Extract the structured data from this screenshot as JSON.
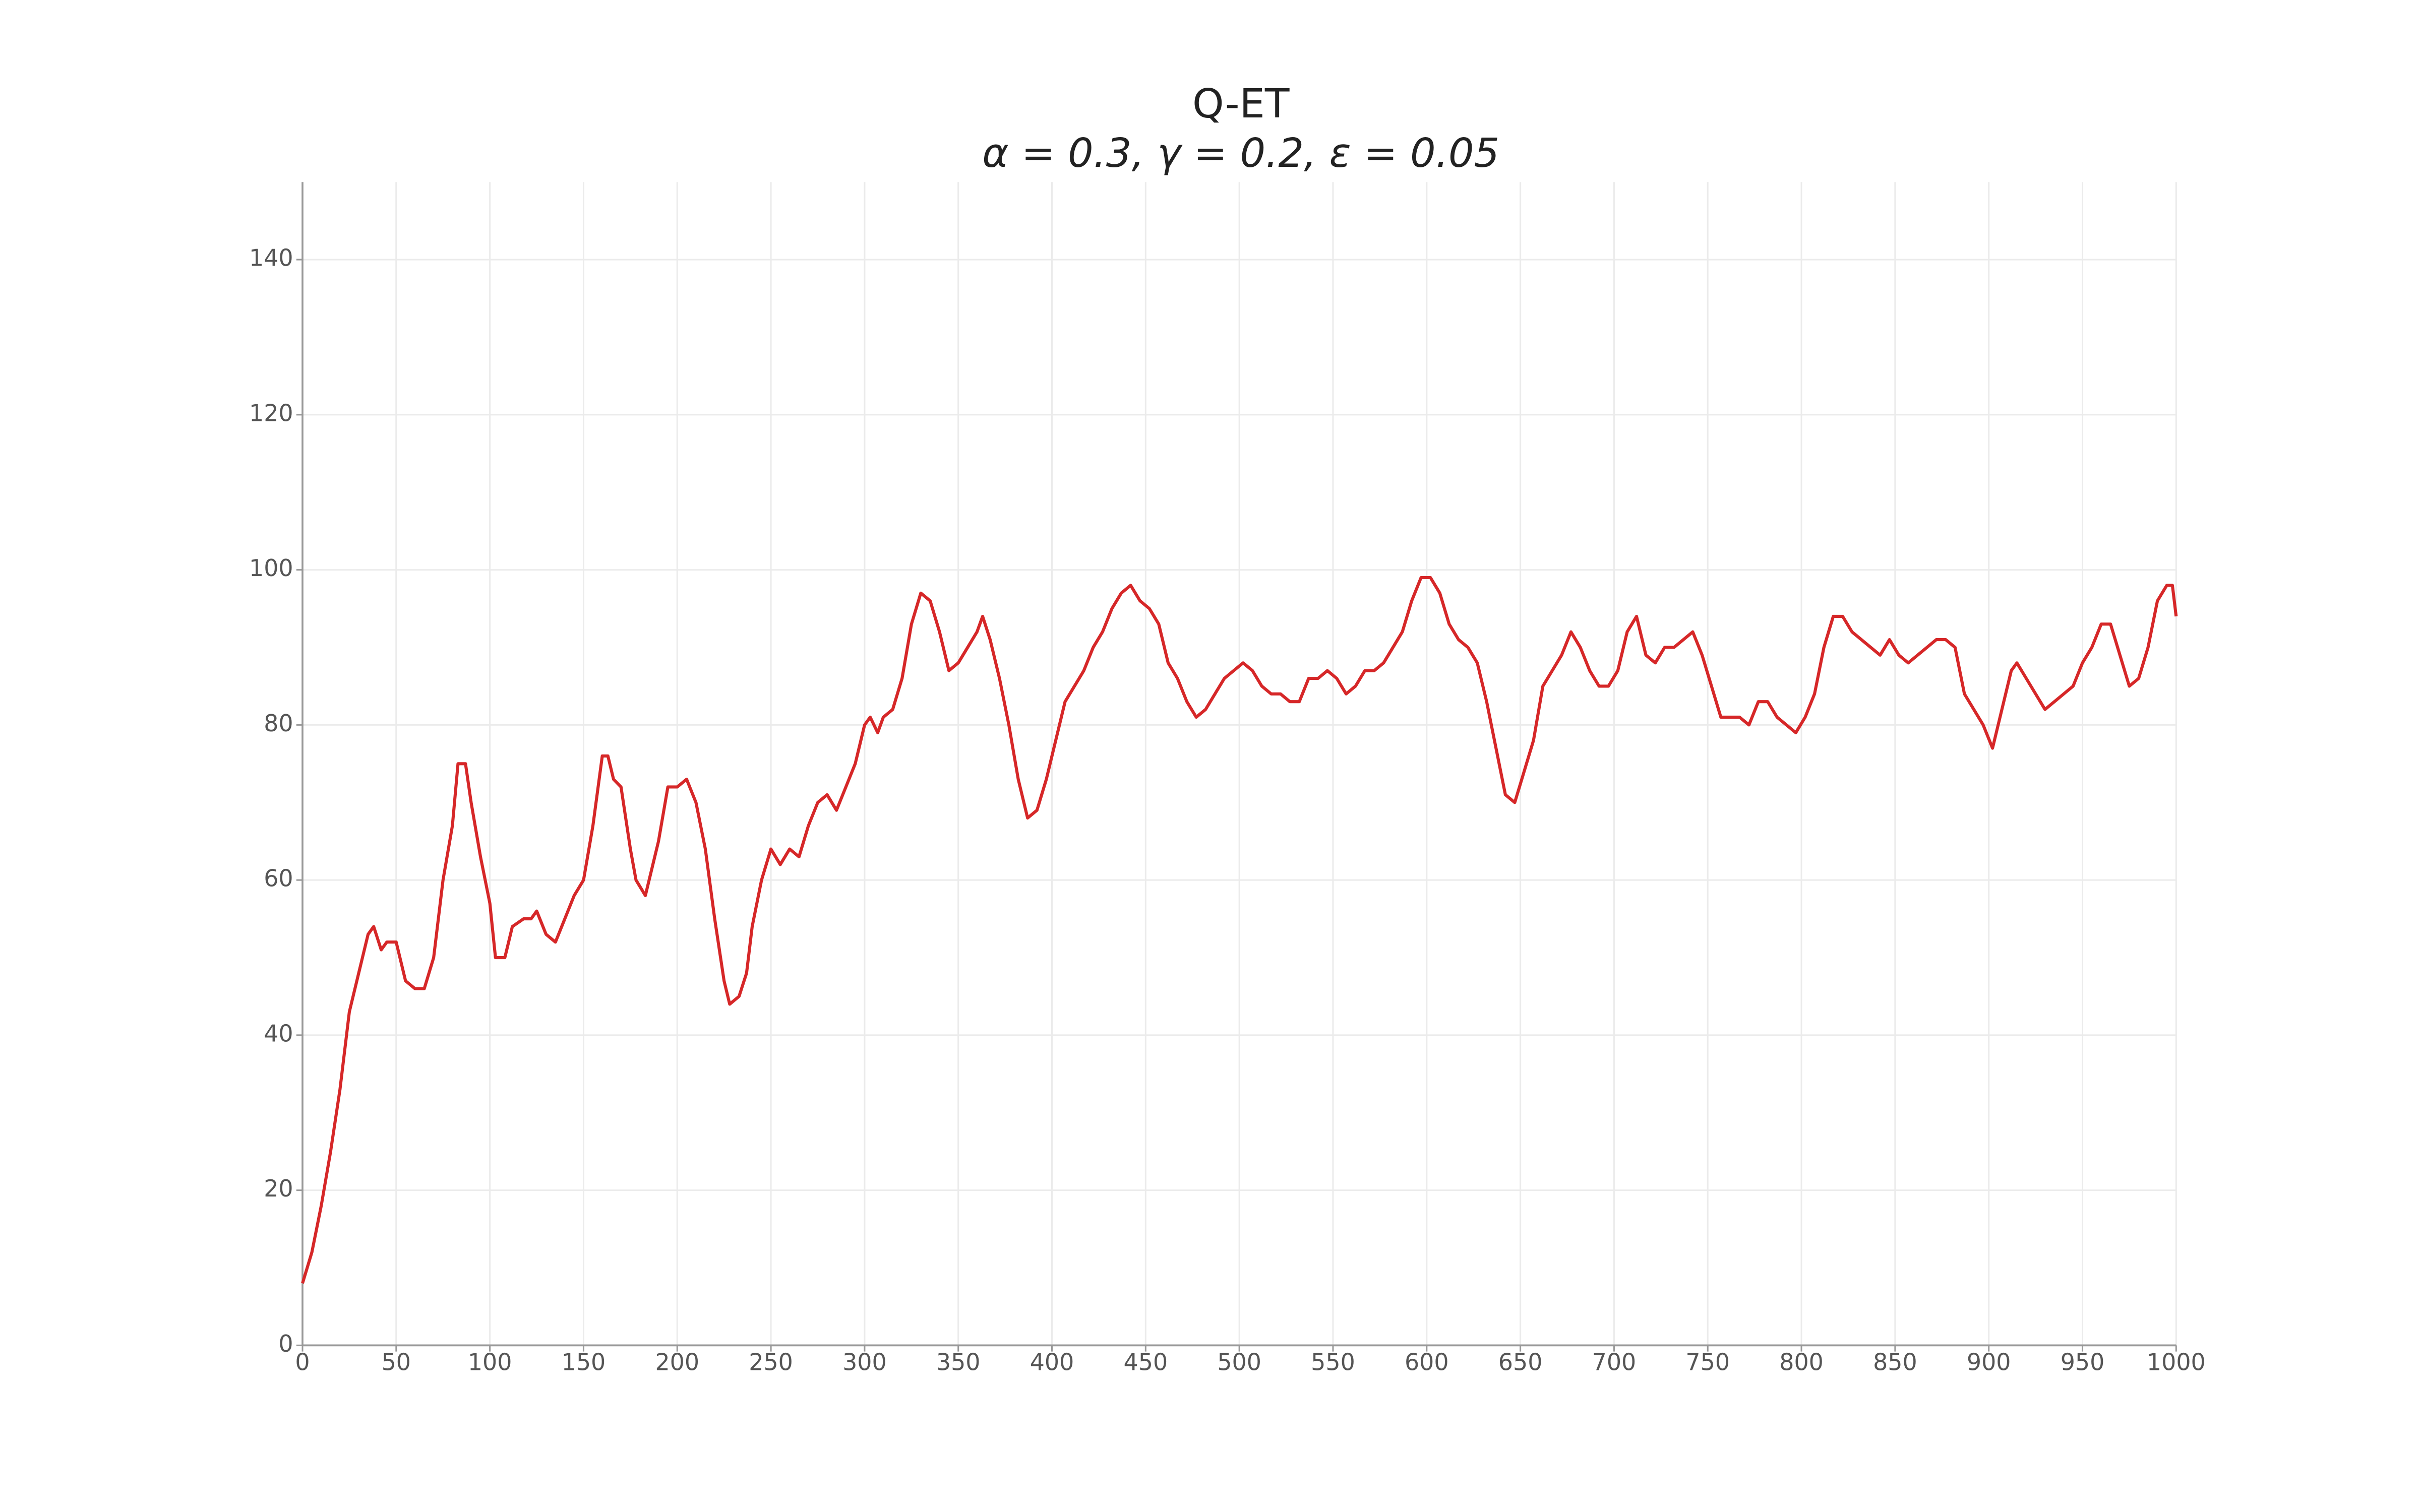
{
  "chart_data": {
    "type": "line",
    "title": "Q-ET",
    "subtitle": "α = 0.3, γ = 0.2, ε = 0.05",
    "xlim": [
      0,
      1000
    ],
    "ylim": [
      0,
      150
    ],
    "xticks": [
      0,
      50,
      100,
      150,
      200,
      250,
      300,
      350,
      400,
      450,
      500,
      550,
      600,
      650,
      700,
      750,
      800,
      850,
      900,
      950,
      1000
    ],
    "yticks": [
      0,
      20,
      40,
      60,
      80,
      100,
      120,
      140
    ],
    "grid": true,
    "series": [
      {
        "color": "#d62728",
        "x": [
          0,
          5,
          10,
          15,
          20,
          25,
          30,
          35,
          38,
          42,
          45,
          50,
          55,
          60,
          65,
          70,
          75,
          80,
          83,
          87,
          90,
          95,
          100,
          103,
          108,
          112,
          118,
          122,
          125,
          130,
          135,
          140,
          145,
          150,
          155,
          160,
          163,
          166,
          170,
          175,
          178,
          183,
          187,
          190,
          195,
          200,
          205,
          210,
          215,
          220,
          225,
          228,
          233,
          237,
          240,
          245,
          250,
          255,
          260,
          265,
          270,
          275,
          280,
          285,
          290,
          295,
          300,
          303,
          307,
          310,
          315,
          320,
          325,
          330,
          335,
          340,
          345,
          350,
          355,
          360,
          363,
          367,
          372,
          377,
          382,
          387,
          392,
          397,
          402,
          407,
          412,
          417,
          422,
          427,
          432,
          437,
          442,
          447,
          452,
          457,
          462,
          467,
          472,
          477,
          482,
          487,
          492,
          497,
          502,
          507,
          512,
          517,
          522,
          527,
          532,
          537,
          542,
          547,
          552,
          557,
          562,
          567,
          572,
          577,
          582,
          587,
          592,
          597,
          602,
          607,
          612,
          617,
          622,
          627,
          632,
          637,
          642,
          647,
          652,
          657,
          662,
          667,
          672,
          677,
          682,
          687,
          692,
          697,
          702,
          707,
          712,
          717,
          722,
          727,
          732,
          737,
          742,
          747,
          752,
          757,
          762,
          767,
          772,
          777,
          782,
          787,
          792,
          797,
          802,
          807,
          812,
          817,
          822,
          827,
          832,
          837,
          842,
          847,
          852,
          857,
          862,
          867,
          872,
          877,
          882,
          887,
          892,
          897,
          902,
          907,
          912,
          915,
          920,
          925,
          930,
          935,
          940,
          945,
          950,
          955,
          960,
          965,
          970,
          975,
          980,
          985,
          990,
          995,
          998,
          1000
        ],
        "values": [
          8,
          12,
          18,
          25,
          33,
          43,
          48,
          53,
          54,
          51,
          52,
          52,
          47,
          46,
          46,
          50,
          60,
          67,
          75,
          75,
          70,
          63,
          57,
          50,
          50,
          54,
          55,
          55,
          56,
          53,
          52,
          55,
          58,
          60,
          67,
          76,
          76,
          73,
          72,
          64,
          60,
          58,
          62,
          65,
          72,
          72,
          73,
          70,
          64,
          55,
          47,
          44,
          45,
          48,
          54,
          60,
          64,
          62,
          64,
          63,
          67,
          70,
          71,
          69,
          72,
          75,
          80,
          81,
          79,
          81,
          82,
          86,
          93,
          97,
          96,
          92,
          87,
          88,
          90,
          92,
          94,
          91,
          86,
          80,
          73,
          68,
          69,
          73,
          78,
          83,
          85,
          87,
          90,
          92,
          95,
          97,
          98,
          96,
          95,
          93,
          88,
          86,
          83,
          81,
          82,
          84,
          86,
          87,
          88,
          87,
          85,
          84,
          84,
          83,
          83,
          86,
          86,
          87,
          86,
          84,
          85,
          87,
          87,
          88,
          90,
          92,
          96,
          99,
          99,
          97,
          93,
          91,
          90,
          88,
          83,
          77,
          71,
          70,
          74,
          78,
          85,
          87,
          89,
          92,
          90,
          87,
          85,
          85,
          87,
          92,
          94,
          89,
          88,
          90,
          90,
          91,
          92,
          89,
          85,
          81,
          81,
          81,
          80,
          83,
          83,
          81,
          80,
          79,
          81,
          84,
          90,
          94,
          94,
          92,
          91,
          90,
          89,
          91,
          89,
          88,
          89,
          90,
          91,
          91,
          90,
          84,
          82,
          80,
          77,
          82,
          87,
          88,
          86,
          84,
          82,
          83,
          84,
          85,
          88,
          90,
          93,
          93,
          89,
          85,
          86,
          90,
          96,
          98,
          98,
          94
        ]
      }
    ]
  }
}
